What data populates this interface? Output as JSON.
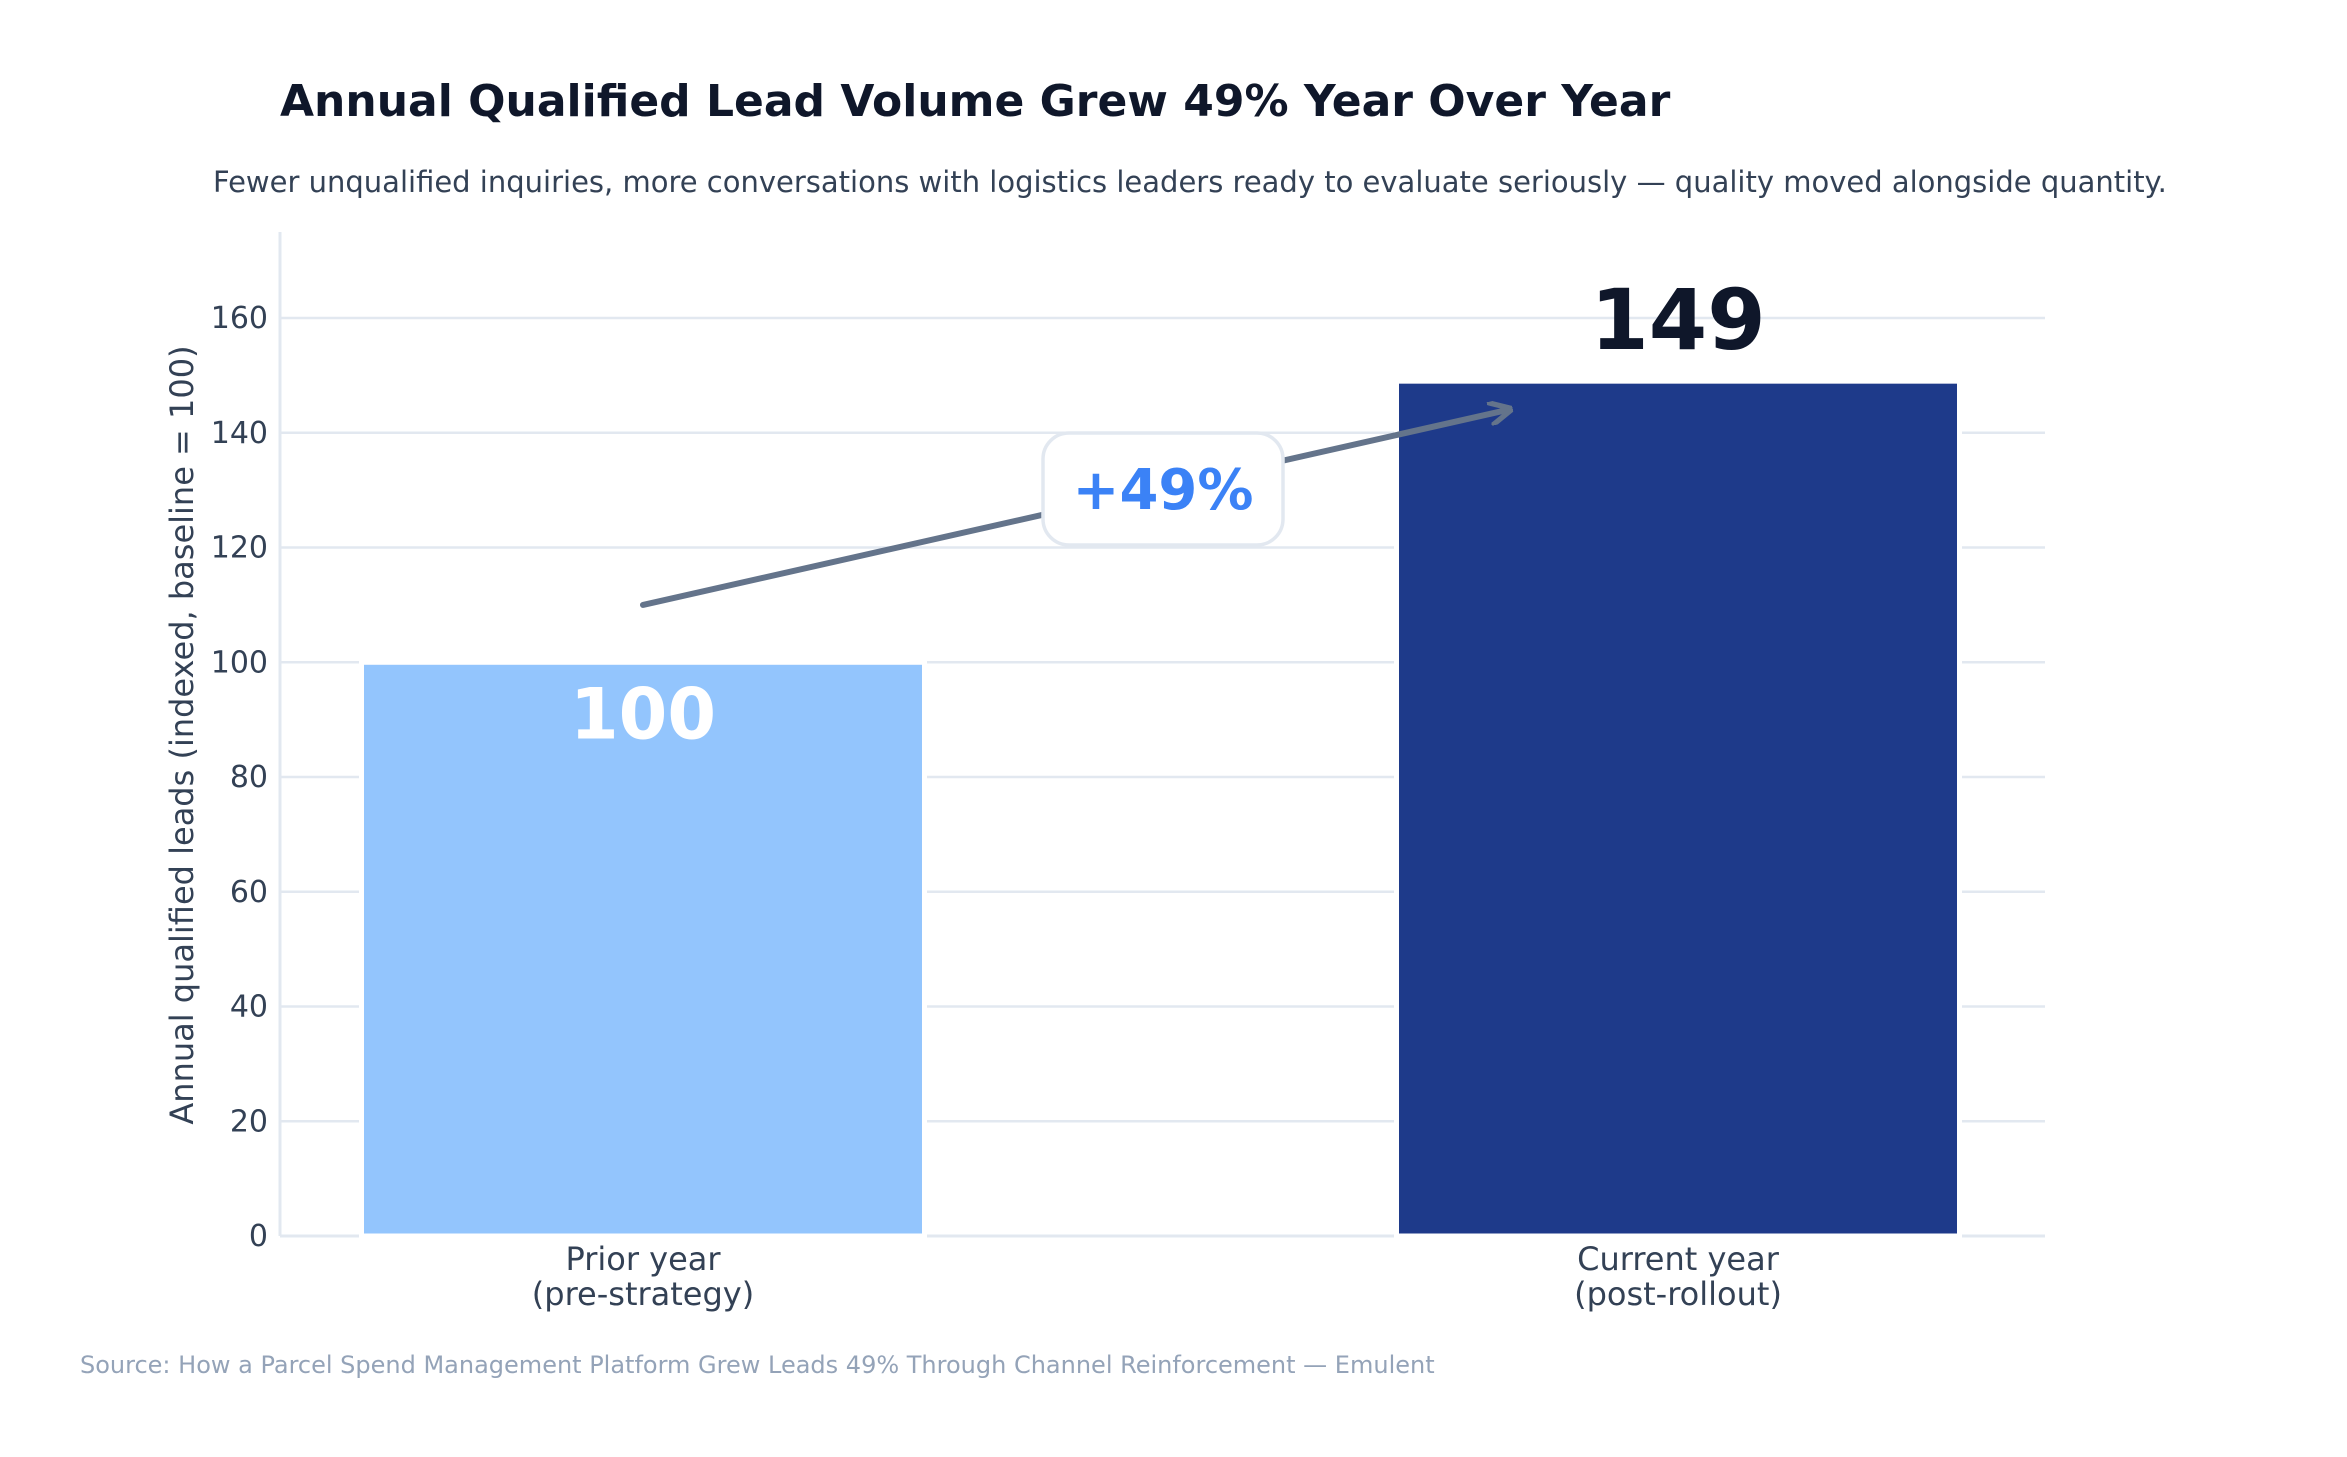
{
  "chart_data": {
    "type": "bar",
    "title": "Annual Qualified Lead Volume Grew 49% Year Over Year",
    "subtitle": "Fewer unqualified inquiries, more conversations with logistics leaders ready to evaluate seriously — quality moved alongside quantity.",
    "xlabel": "",
    "ylabel": "Annual qualified leads (indexed, baseline = 100)",
    "categories": [
      [
        "Prior year",
        "(pre-strategy)"
      ],
      [
        "Current year",
        "(post-rollout)"
      ]
    ],
    "values": [
      100,
      149
    ],
    "value_labels": [
      "100",
      "149"
    ],
    "ylim": [
      0,
      175
    ],
    "yticks": [
      0,
      20,
      40,
      60,
      80,
      100,
      120,
      140,
      160
    ],
    "grid": true,
    "annotation": {
      "text": "+49%",
      "arrow_from": {
        "category_index": 0,
        "value": 110
      },
      "arrow_to": {
        "category_index": 1,
        "value": 144
      }
    },
    "source": "Source: How a Parcel Spend Management Platform Grew Leads 49% Through Channel Reinforcement — Emulent",
    "colors": {
      "bar_prior": "#93c5fd",
      "bar_current": "#1e3a8a",
      "grid": "#e2e8f0",
      "axis_text": "#334155",
      "title": "#0f172a",
      "label_inside": "#ffffff",
      "label_above": "#0f172a",
      "annotation_text": "#3b82f6",
      "arrow": "#64748b",
      "source": "#94a3b8"
    }
  }
}
